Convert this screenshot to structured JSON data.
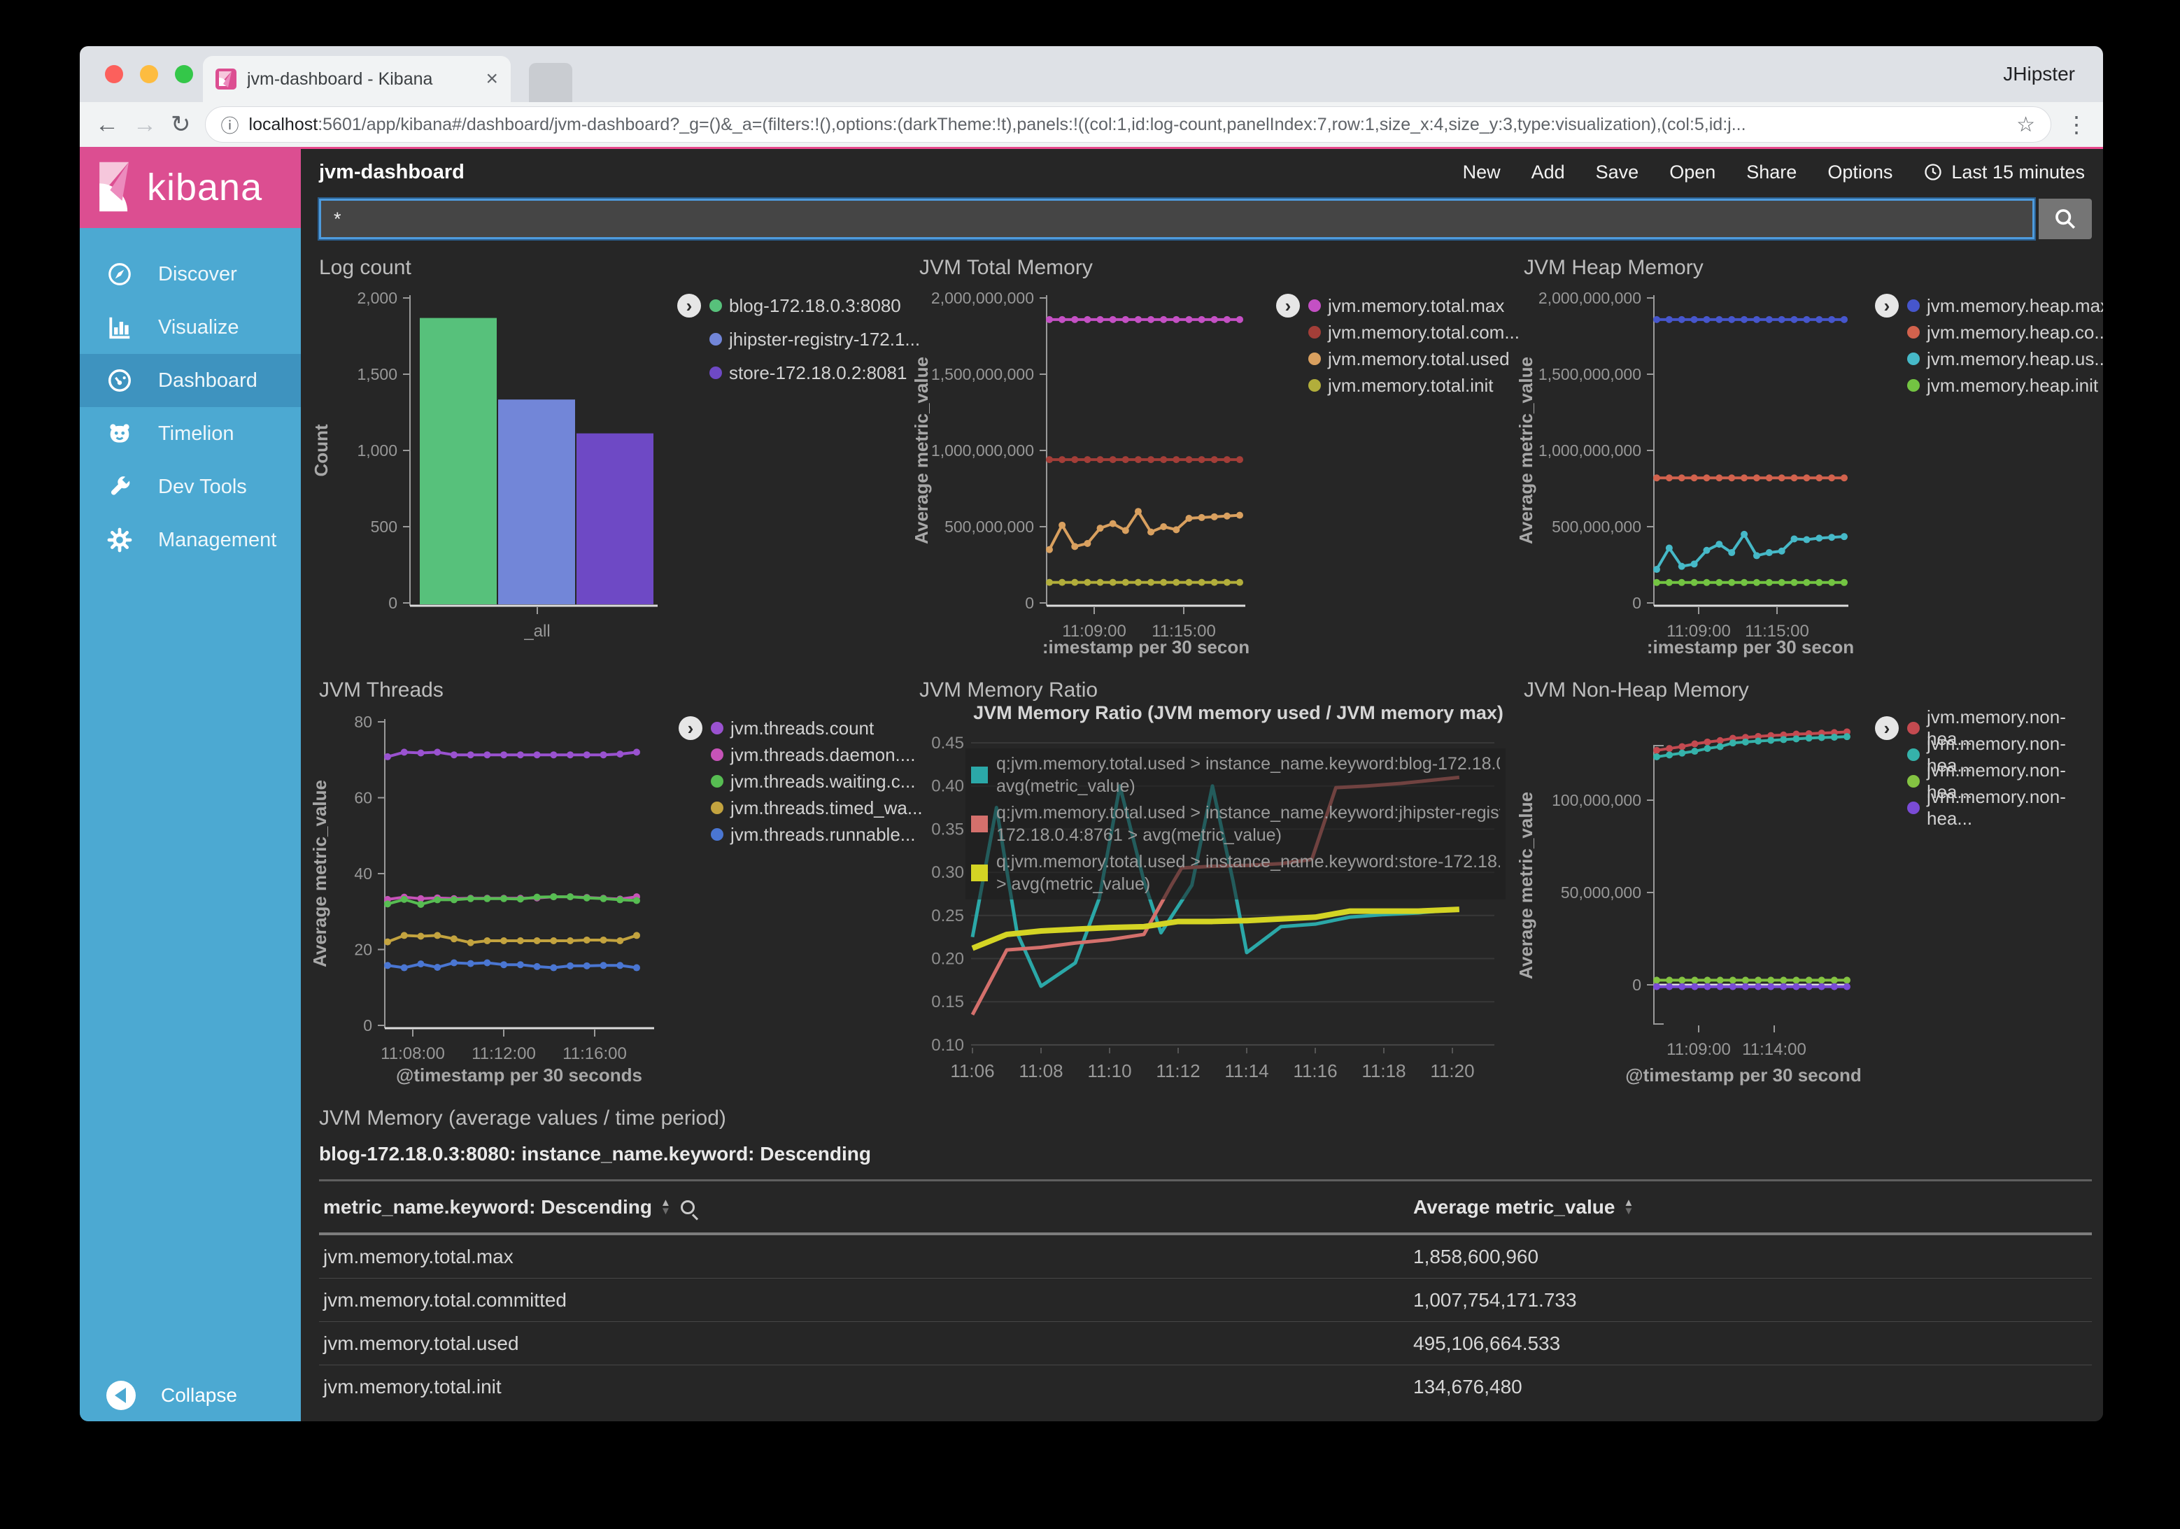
{
  "browser": {
    "tab_title": "jvm-dashboard - Kibana",
    "tab_close": "×",
    "profile": "JHipster",
    "url_host": "localhost",
    "url_rest": ":5601/app/kibana#/dashboard/jvm-dashboard?_g=()&_a=(filters:!(),options:(darkTheme:!t),panels:!((col:1,id:log-count,panelIndex:7,row:1,size_x:4,size_y:3,type:visualization),(col:5,id:j...",
    "back": "←",
    "forward": "→",
    "refresh": "↻",
    "info": "ⓘ",
    "star": "☆",
    "menu": "⋮"
  },
  "sidebar": {
    "logo": "kibana",
    "items": [
      {
        "id": "discover",
        "label": "Discover",
        "active": false
      },
      {
        "id": "visualize",
        "label": "Visualize",
        "active": false
      },
      {
        "id": "dashboard",
        "label": "Dashboard",
        "active": true
      },
      {
        "id": "timelion",
        "label": "Timelion",
        "active": false
      },
      {
        "id": "devtools",
        "label": "Dev Tools",
        "active": false
      },
      {
        "id": "management",
        "label": "Management",
        "active": false
      }
    ],
    "collapse": "Collapse"
  },
  "topbar": {
    "title": "jvm-dashboard",
    "actions": [
      "New",
      "Add",
      "Save",
      "Open",
      "Share",
      "Options"
    ],
    "time_range": "Last 15 minutes"
  },
  "search": {
    "value": "*"
  },
  "charts": [
    {
      "id": "log-count",
      "type": "bar",
      "title": "Log count",
      "ylabel": "Count",
      "ylim": [
        0,
        2000
      ],
      "yticks": [
        "2,000",
        "1,500",
        "1,000",
        "500",
        "0"
      ],
      "xtick": "_all",
      "bars": [
        {
          "name": "blog-172.18.0.3:8080",
          "color": "#57c17b",
          "value": 1870
        },
        {
          "name": "jhipster-registry-172.18.0.4:8761",
          "color": "#7286d8",
          "value": 1340
        },
        {
          "name": "store-172.18.0.2:8081",
          "color": "#6e49c5",
          "value": 1120
        }
      ],
      "legend": [
        {
          "label": "blog-172.18.0.3:8080",
          "color": "#57c17b"
        },
        {
          "label": "jhipster-registry-172.1...",
          "color": "#7286d8"
        },
        {
          "label": "store-172.18.0.2:8081",
          "color": "#6e49c5"
        }
      ]
    },
    {
      "id": "jvm-total-memory",
      "type": "line",
      "title": "JVM Total Memory",
      "ylabel": "Average metric_value",
      "unit": "millions",
      "ylim": [
        0,
        2000
      ],
      "yticks": [
        "2,000,000,000",
        "1,500,000,000",
        "1,000,000,000",
        "500,000,000",
        "0"
      ],
      "xticks": [
        "11:09:00",
        "11:15:00"
      ],
      "xlabel": ":imestamp per 30 secon",
      "series": [
        {
          "name": "jvm.memory.total.max",
          "color": "#c450c4",
          "values": [
            1858.6,
            1858.6,
            1858.6,
            1858.6,
            1858.6,
            1858.6,
            1858.6,
            1858.6,
            1858.6,
            1858.6,
            1858.6,
            1858.6,
            1858.6,
            1858.6,
            1858.6,
            1858.6
          ]
        },
        {
          "name": "jvm.memory.total.committed",
          "color": "#a33e38",
          "values": [
            940,
            940,
            940,
            940,
            940,
            940,
            940,
            940,
            940,
            940,
            940,
            940,
            940,
            940,
            940,
            940
          ]
        },
        {
          "name": "jvm.memory.total.used",
          "color": "#d9a05f",
          "values": [
            350,
            510,
            370,
            390,
            490,
            520,
            475,
            600,
            465,
            500,
            480,
            555,
            560,
            565,
            570,
            575
          ]
        },
        {
          "name": "jvm.memory.total.init",
          "color": "#b2ae3b",
          "values": [
            134.7,
            134.7,
            134.7,
            134.7,
            134.7,
            134.7,
            134.7,
            134.7,
            134.7,
            134.7,
            134.7,
            134.7,
            134.7,
            134.7,
            134.7,
            134.7
          ]
        }
      ],
      "legend": [
        {
          "label": "jvm.memory.total.max",
          "color": "#c450c4"
        },
        {
          "label": "jvm.memory.total.com...",
          "color": "#a33e38"
        },
        {
          "label": "jvm.memory.total.used",
          "color": "#d9a05f"
        },
        {
          "label": "jvm.memory.total.init",
          "color": "#b2ae3b"
        }
      ]
    },
    {
      "id": "jvm-heap-memory",
      "type": "line",
      "title": "JVM Heap Memory",
      "ylabel": "Average metric_value",
      "unit": "millions",
      "ylim": [
        0,
        2000
      ],
      "yticks": [
        "2,000,000,000",
        "1,500,000,000",
        "1,000,000,000",
        "500,000,000",
        "0"
      ],
      "xticks": [
        "11:09:00",
        "11:15:00"
      ],
      "xlabel": ":imestamp per 30 secon",
      "series": [
        {
          "name": "jvm.memory.heap.max",
          "color": "#4656cc",
          "values": [
            1858.6,
            1858.6,
            1858.6,
            1858.6,
            1858.6,
            1858.6,
            1858.6,
            1858.6,
            1858.6,
            1858.6,
            1858.6,
            1858.6,
            1858.6,
            1858.6,
            1858.6,
            1858.6
          ]
        },
        {
          "name": "jvm.memory.heap.committed",
          "color": "#d2624d",
          "values": [
            820,
            820,
            820,
            820,
            820,
            820,
            820,
            820,
            820,
            820,
            820,
            820,
            820,
            820,
            820,
            820
          ]
        },
        {
          "name": "jvm.memory.heap.used",
          "color": "#46b9c8",
          "values": [
            220,
            360,
            240,
            255,
            345,
            385,
            330,
            450,
            310,
            330,
            340,
            420,
            415,
            425,
            430,
            435
          ]
        },
        {
          "name": "jvm.memory.heap.init",
          "color": "#73c442",
          "values": [
            134,
            134,
            134,
            134,
            134,
            134,
            134,
            134,
            134,
            134,
            134,
            134,
            134,
            134,
            134,
            134
          ]
        }
      ],
      "legend": [
        {
          "label": "jvm.memory.heap.max",
          "color": "#4656cc"
        },
        {
          "label": "jvm.memory.heap.co...",
          "color": "#d2624d"
        },
        {
          "label": "jvm.memory.heap.us...",
          "color": "#46b9c8"
        },
        {
          "label": "jvm.memory.heap.init",
          "color": "#73c442"
        }
      ]
    },
    {
      "id": "jvm-threads",
      "type": "line",
      "title": "JVM Threads",
      "ylabel": "Average metric_value",
      "ylim": [
        0,
        80
      ],
      "yticks": [
        "80",
        "60",
        "40",
        "20",
        "0"
      ],
      "xticks": [
        "11:08:00",
        "11:12:00",
        "11:16:00"
      ],
      "xlabel": "@timestamp per 30 seconds",
      "series": [
        {
          "name": "jvm.threads.count",
          "color": "#9a52d0",
          "values": [
            70.8,
            72,
            71.8,
            72,
            71.3,
            71.3,
            71.3,
            71.3,
            71.3,
            71.3,
            71.3,
            71.3,
            71.3,
            71.3,
            71.5,
            72
          ]
        },
        {
          "name": "jvm.threads.daemon",
          "color": "#c653b8",
          "values": [
            33.2,
            33.8,
            33.4,
            33.6,
            33.4,
            33.5,
            33.5,
            33.5,
            33.5,
            33.6,
            33.9,
            33.9,
            33.7,
            33.5,
            33.3,
            33.9
          ]
        },
        {
          "name": "jvm.threads.waiting",
          "color": "#57bd52",
          "values": [
            32,
            33.2,
            31.9,
            33.1,
            33.1,
            33.4,
            33.4,
            33.4,
            33.3,
            33.8,
            33.9,
            33.9,
            33.6,
            33.4,
            33.1,
            32.9
          ]
        },
        {
          "name": "jvm.threads.timed_waiting",
          "color": "#c3a33f",
          "values": [
            22,
            23.7,
            23.5,
            23.7,
            22.8,
            21.8,
            22.3,
            22.3,
            22.3,
            22.3,
            22.3,
            22.3,
            22.5,
            22.5,
            22.3,
            23.7
          ]
        },
        {
          "name": "jvm.threads.runnable",
          "color": "#4a76d2",
          "values": [
            15.8,
            15.2,
            16.2,
            15.3,
            16.5,
            16.3,
            16.5,
            16,
            16,
            15.5,
            15.2,
            15.7,
            15.7,
            15.8,
            15.8,
            15.2
          ]
        }
      ],
      "legend": [
        {
          "label": "jvm.threads.count",
          "color": "#9a52d0"
        },
        {
          "label": "jvm.threads.daemon....",
          "color": "#c653b8"
        },
        {
          "label": "jvm.threads.waiting.c...",
          "color": "#57bd52"
        },
        {
          "label": "jvm.threads.timed_wa...",
          "color": "#c3a33f"
        },
        {
          "label": "jvm.threads.runnable...",
          "color": "#4a76d2"
        }
      ]
    },
    {
      "id": "jvm-memory-ratio",
      "type": "line-xy",
      "title": "JVM Memory Ratio",
      "chart_title": "JVM Memory Ratio (JVM memory used / JVM memory max)",
      "ylim": [
        0.1,
        0.45
      ],
      "yticks": [
        "0.45",
        "0.40",
        "0.35",
        "0.30",
        "0.25",
        "0.20",
        "0.15",
        "0.10"
      ],
      "xticks": [
        "11:06",
        "11:08",
        "11:10",
        "11:12",
        "11:14",
        "11:16",
        "11:18",
        "11:20"
      ],
      "series": [
        {
          "name": "q:jvm.memory.total.used > instance_name.keyword:blog-172.18.0.3:8080 > avg(metric_value)",
          "color": "#2ba8a8",
          "width": 5,
          "points": [
            [
              6,
              0.225
            ],
            [
              6.7,
              0.375
            ],
            [
              7.3,
              0.23
            ],
            [
              8,
              0.168
            ],
            [
              9,
              0.195
            ],
            [
              9.7,
              0.27
            ],
            [
              10.3,
              0.4
            ],
            [
              11,
              0.29
            ],
            [
              11.5,
              0.23
            ],
            [
              12.4,
              0.285
            ],
            [
              13,
              0.4
            ],
            [
              13.6,
              0.29
            ],
            [
              14,
              0.207
            ],
            [
              15,
              0.237
            ],
            [
              16,
              0.24
            ],
            [
              17,
              0.248
            ],
            [
              18,
              0.251
            ],
            [
              19,
              0.253
            ],
            [
              20.2,
              0.257
            ]
          ]
        },
        {
          "name": "q:jvm.memory.total.used > instance_name.keyword:jhipster-registry-172.18.0.4:8761 > avg(metric_value)",
          "color": "#d4706c",
          "width": 5,
          "points": [
            [
              6,
              0.135
            ],
            [
              7,
              0.21
            ],
            [
              8,
              0.213
            ],
            [
              9,
              0.218
            ],
            [
              10,
              0.222
            ],
            [
              11,
              0.228
            ],
            [
              11.8,
              0.285
            ],
            [
              12.1,
              0.305
            ],
            [
              13,
              0.307
            ],
            [
              14,
              0.308
            ],
            [
              15,
              0.31
            ],
            [
              15.9,
              0.315
            ],
            [
              16.6,
              0.398
            ],
            [
              17.5,
              0.4
            ],
            [
              18.5,
              0.403
            ],
            [
              20.2,
              0.41
            ]
          ]
        },
        {
          "name": "q:jvm.memory.total.used > instance_name.keyword:store-172.18.0.2:8081 > avg(metric_value)",
          "color": "#d4d424",
          "width": 8,
          "points": [
            [
              6,
              0.212
            ],
            [
              7,
              0.228
            ],
            [
              8,
              0.232
            ],
            [
              9,
              0.234
            ],
            [
              10,
              0.236
            ],
            [
              11,
              0.237
            ],
            [
              12,
              0.243
            ],
            [
              13,
              0.243
            ],
            [
              14,
              0.244
            ],
            [
              15,
              0.246
            ],
            [
              16,
              0.248
            ],
            [
              17,
              0.255
            ],
            [
              18,
              0.255
            ],
            [
              19,
              0.255
            ],
            [
              20.2,
              0.257
            ]
          ]
        }
      ],
      "legend_groups": [
        {
          "color": "#2ba8a8",
          "rows": [
            "q:jvm.memory.total.used > instance_name.keyword:blog-172.18.0.3",
            "avg(metric_value)"
          ]
        },
        {
          "color": "#d4706c",
          "rows": [
            "q:jvm.memory.total.used > instance_name.keyword:jhipster-registry",
            "172.18.0.4:8761 > avg(metric_value)"
          ]
        },
        {
          "color": "#d4d424",
          "rows": [
            "q:jvm.memory.total.used > instance_name.keyword:store-172.18.0.",
            "> avg(metric_value)"
          ]
        }
      ]
    },
    {
      "id": "jvm-non-heap-memory",
      "type": "line",
      "title": "JVM Non-Heap Memory",
      "ylabel": "Average metric_value",
      "unit": "millions",
      "ylim": [
        0,
        100
      ],
      "yticks": [
        "100,000,000",
        "50,000,000",
        "0"
      ],
      "xticks": [
        "11:09:00",
        "11:14:00"
      ],
      "xlabel": "@timestamp per 30 second",
      "series": [
        {
          "name": "jvm.memory.non-heap.committed",
          "color": "#c44a50",
          "values": [
            127,
            128,
            129,
            130.5,
            131.5,
            132.3,
            133.5,
            134,
            134.5,
            135,
            135.3,
            135.8,
            136,
            136.3,
            136.6,
            137
          ]
        },
        {
          "name": "jvm.memory.non-heap.used",
          "color": "#35b2aa",
          "values": [
            123.5,
            124.5,
            125.5,
            126.5,
            128,
            129,
            131,
            131.5,
            132,
            132.4,
            132.8,
            133.2,
            133.6,
            133.9,
            134.1,
            134.4
          ]
        },
        {
          "name": "jvm.memory.non-heap.init",
          "color": "#84c342",
          "values": [
            2.5,
            2.5,
            2.5,
            2.5,
            2.5,
            2.5,
            2.5,
            2.5,
            2.5,
            2.5,
            2.5,
            2.5,
            2.5,
            2.5,
            2.5,
            2.5
          ]
        },
        {
          "name": "jvm.memory.non-heap.max",
          "color": "#7a4bd6",
          "values": [
            -1,
            -1,
            -1,
            -1,
            -1,
            -1,
            -1,
            -1,
            -1,
            -1,
            -1,
            -1,
            -1,
            -1,
            -1,
            -1
          ]
        }
      ],
      "legend": [
        {
          "label": "jvm.memory.non-hea...",
          "color": "#c44a50"
        },
        {
          "label": "jvm.memory.non-hea...",
          "color": "#35b2aa"
        },
        {
          "label": "jvm.memory.non-hea...",
          "color": "#84c342"
        },
        {
          "label": "jvm.memory.non-hea...",
          "color": "#7a4bd6"
        }
      ]
    }
  ],
  "memory_table": {
    "panel_title": "JVM Memory (average values / time period)",
    "group_title": "blog-172.18.0.3:8080: instance_name.keyword: Descending",
    "col1": "metric_name.keyword: Descending",
    "col2": "Average metric_value",
    "rows": [
      [
        "jvm.memory.total.max",
        "1,858,600,960"
      ],
      [
        "jvm.memory.total.committed",
        "1,007,754,171.733"
      ],
      [
        "jvm.memory.total.used",
        "495,106,664.533"
      ],
      [
        "jvm.memory.total.init",
        "134,676,480"
      ]
    ]
  }
}
